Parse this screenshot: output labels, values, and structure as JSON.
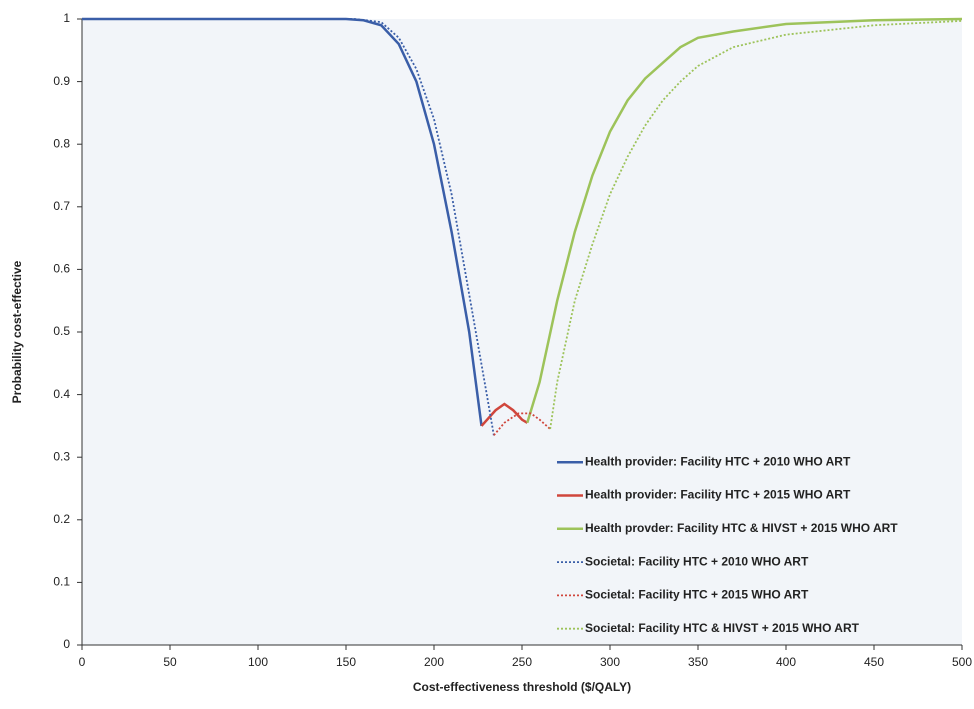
{
  "chart_data": {
    "type": "line",
    "x_label": "Cost-effectiveness threshold ($/QALY)",
    "y_label": "Probability cost-effective",
    "xlim": [
      0,
      500
    ],
    "xticks": [
      0,
      50,
      100,
      150,
      200,
      250,
      300,
      350,
      400,
      450,
      500
    ],
    "ylim": [
      0,
      1
    ],
    "yticks": [
      0,
      0.1,
      0.2,
      0.3,
      0.4,
      0.5,
      0.6,
      0.7,
      0.8,
      0.9,
      1
    ],
    "legend": "lower right",
    "grid": false,
    "series": [
      {
        "name": "Health provider: Facility HTC + 2010 WHO ART",
        "color": "#3a5ea8",
        "style": "solid",
        "x": [
          0,
          150,
          160,
          170,
          180,
          190,
          200,
          210,
          220,
          227
        ],
        "values": [
          1,
          1,
          0.998,
          0.99,
          0.96,
          0.9,
          0.8,
          0.66,
          0.5,
          0.35
        ]
      },
      {
        "name": "Health provider: Facility HTC + 2015 WHO ART",
        "color": "#d0463c",
        "style": "solid",
        "x": [
          227,
          235,
          240,
          245,
          250,
          253
        ],
        "values": [
          0.35,
          0.375,
          0.385,
          0.375,
          0.36,
          0.355
        ]
      },
      {
        "name": "Health provder: Facility HTC & HIVST + 2015 WHO ART",
        "color": "#9dc35a",
        "style": "solid",
        "x": [
          253,
          260,
          270,
          280,
          290,
          300,
          310,
          320,
          330,
          340,
          350,
          370,
          400,
          450,
          500
        ],
        "values": [
          0.355,
          0.42,
          0.55,
          0.66,
          0.75,
          0.82,
          0.87,
          0.905,
          0.93,
          0.955,
          0.97,
          0.98,
          0.992,
          0.998,
          1
        ]
      },
      {
        "name": "Societal: Facility HTC + 2010 WHO ART",
        "color": "#3a5ea8",
        "style": "dotted",
        "x": [
          0,
          155,
          170,
          180,
          190,
          200,
          210,
          220,
          230,
          234
        ],
        "values": [
          1,
          1,
          0.995,
          0.97,
          0.92,
          0.84,
          0.72,
          0.56,
          0.4,
          0.335
        ]
      },
      {
        "name": "Societal: Facility HTC + 2015 WHO ART",
        "color": "#d0463c",
        "style": "dotted",
        "x": [
          234,
          240,
          248,
          255,
          260,
          266
        ],
        "values": [
          0.335,
          0.355,
          0.37,
          0.37,
          0.36,
          0.345
        ]
      },
      {
        "name": "Societal: Facility HTC & HIVST + 2015 WHO ART",
        "color": "#9dc35a",
        "style": "dotted",
        "x": [
          266,
          270,
          280,
          290,
          300,
          310,
          320,
          330,
          340,
          350,
          370,
          400,
          450,
          500
        ],
        "values": [
          0.345,
          0.42,
          0.55,
          0.64,
          0.72,
          0.78,
          0.83,
          0.87,
          0.9,
          0.925,
          0.955,
          0.975,
          0.99,
          0.997
        ]
      }
    ]
  }
}
